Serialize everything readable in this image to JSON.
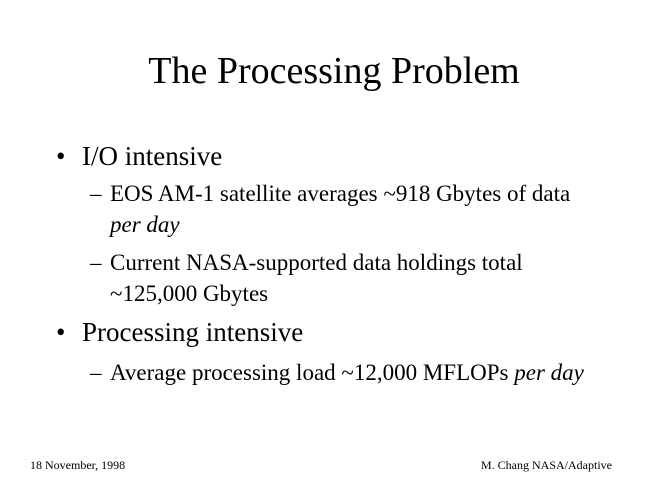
{
  "slide": {
    "title": "The Processing Problem",
    "bullets": [
      {
        "marker": "•",
        "text": "I/O intensive",
        "sub": [
          {
            "marker": "–",
            "parts": [
              "EOS AM-1 satellite averages ~918 Gbytes of data ",
              "per day",
              ""
            ]
          },
          {
            "marker": "–",
            "parts": [
              "Current NASA-supported data holdings total ~125,000 Gbytes",
              "",
              ""
            ]
          }
        ]
      },
      {
        "marker": "•",
        "text": "Processing intensive",
        "sub": [
          {
            "marker": "–",
            "parts": [
              "Average processing load ~12,000 MFLOPs ",
              "per day",
              ""
            ]
          }
        ]
      }
    ]
  },
  "footer": {
    "date": "18 November, 1998",
    "author": "M. Chang NASA/Adaptive"
  }
}
